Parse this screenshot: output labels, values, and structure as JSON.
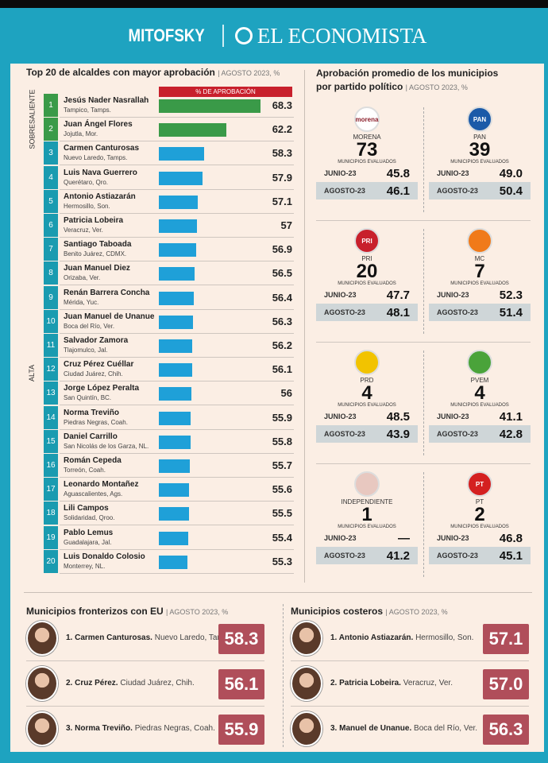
{
  "header": {
    "brand1": "MITOFSKY",
    "brand2": "EL ECONOMISTA"
  },
  "chart_data": {
    "type": "bar",
    "title": "Top 20 de alcaldes con mayor aprobación",
    "subtitle": "AGOSTO 2023, %",
    "legend": "% DE APROBACIÓN",
    "groups": [
      {
        "label": "SOBRESALIENTE",
        "ranks": [
          1,
          2
        ],
        "color": "#3a9a48"
      },
      {
        "label": "ALTA",
        "ranks": [
          3,
          20
        ],
        "color": "#1fa0d8"
      }
    ],
    "rows": [
      {
        "rank": "1",
        "name": "Jesús Nader Nasrallah",
        "place": "Tampico, Tamps.",
        "value": 68.3
      },
      {
        "rank": "2",
        "name": "Juan Ángel Flores",
        "place": "Jojutla, Mor.",
        "value": 62.2
      },
      {
        "rank": "3",
        "name": "Carmen Canturosas",
        "place": "Nuevo Laredo, Tamps.",
        "value": 58.3
      },
      {
        "rank": "4",
        "name": "Luis Nava Guerrero",
        "place": "Querétaro, Qro.",
        "value": 57.9
      },
      {
        "rank": "5",
        "name": "Antonio Astiazarán",
        "place": "Hermosillo, Son.",
        "value": 57.1
      },
      {
        "rank": "6",
        "name": "Patricia Lobeira",
        "place": "Veracruz, Ver.",
        "value": 57.0
      },
      {
        "rank": "7",
        "name": "Santiago Taboada",
        "place": "Benito Juárez, CDMX.",
        "value": 56.9
      },
      {
        "rank": "8",
        "name": "Juan Manuel Diez",
        "place": "Orizaba, Ver.",
        "value": 56.5
      },
      {
        "rank": "9",
        "name": "Renán Barrera Concha",
        "place": "Mérida, Yuc.",
        "value": 56.4
      },
      {
        "rank": "10",
        "name": "Juan Manuel de Unanue",
        "place": "Boca del Río, Ver.",
        "value": 56.3
      },
      {
        "rank": "11",
        "name": "Salvador Zamora",
        "place": "Tlajomulco, Jal.",
        "value": 56.2
      },
      {
        "rank": "12",
        "name": "Cruz Pérez Cuéllar",
        "place": "Ciudad Juárez, Chih.",
        "value": 56.1
      },
      {
        "rank": "13",
        "name": "Jorge López Peralta",
        "place": "San Quintín, BC.",
        "value": 56.0
      },
      {
        "rank": "14",
        "name": "Norma Treviño",
        "place": "Piedras Negras, Coah.",
        "value": 55.9
      },
      {
        "rank": "15",
        "name": "Daniel Carrillo",
        "place": "San Nicolás de los Garza, NL.",
        "value": 55.8
      },
      {
        "rank": "16",
        "name": "Román Cepeda",
        "place": "Torreón, Coah.",
        "value": 55.7
      },
      {
        "rank": "17",
        "name": "Leonardo Montañez",
        "place": "Aguascalientes, Ags.",
        "value": 55.6
      },
      {
        "rank": "18",
        "name": "Lili Campos",
        "place": "Solidaridad, Qroo.",
        "value": 55.5
      },
      {
        "rank": "19",
        "name": "Pablo Lemus",
        "place": "Guadalajara, Jal.",
        "value": 55.4
      },
      {
        "rank": "20",
        "name": "Luis Donaldo Colosio",
        "place": "Monterrey, NL.",
        "value": 55.3
      }
    ]
  },
  "parties": {
    "title1": "Aprobación promedio de los municipios",
    "title2": "por partido político",
    "subtitle": "AGOSTO 2023, %",
    "evaluated_label": "MUNICIPIOS EVALUADOS",
    "june_label": "JUNIO-23",
    "aug_label": "AGOSTO-23",
    "items": [
      {
        "name": "MORENA",
        "logo": "morena",
        "count": "73",
        "june": "45.8",
        "aug": "46.1",
        "color": "#8b1e2a"
      },
      {
        "name": "PAN",
        "logo": "PAN",
        "count": "39",
        "june": "49.0",
        "aug": "50.4",
        "color": "#1b5aa8"
      },
      {
        "name": "PRI",
        "logo": "PRI",
        "count": "20",
        "june": "47.7",
        "aug": "48.1",
        "color": "#c8202c"
      },
      {
        "name": "MC",
        "logo": "",
        "count": "7",
        "june": "52.3",
        "aug": "51.4",
        "color": "#f07a1a"
      },
      {
        "name": "PRD",
        "logo": "",
        "count": "4",
        "june": "48.5",
        "aug": "43.9",
        "color": "#f2c300"
      },
      {
        "name": "PVEM",
        "logo": "",
        "count": "4",
        "june": "41.1",
        "aug": "42.8",
        "color": "#4aa33a"
      },
      {
        "name": "INDEPENDIENTE",
        "logo": "",
        "count": "1",
        "june": "—",
        "aug": "41.2",
        "color": "#e8c8c0"
      },
      {
        "name": "PT",
        "logo": "PT",
        "count": "2",
        "june": "46.8",
        "aug": "45.1",
        "color": "#d42020"
      }
    ]
  },
  "border": {
    "title": "Municipios fronterizos con EU",
    "subtitle": "AGOSTO 2023, %",
    "items": [
      {
        "name": "1. Carmen Canturosas.",
        "place": "Nuevo Laredo, Tamps.",
        "value": "58.3"
      },
      {
        "name": "2. Cruz Pérez.",
        "place": "Ciudad Juárez, Chih.",
        "value": "56.1"
      },
      {
        "name": "3. Norma Treviño.",
        "place": "Piedras Negras, Coah.",
        "value": "55.9"
      }
    ]
  },
  "coastal": {
    "title": "Municipios costeros",
    "subtitle": "AGOSTO 2023, %",
    "items": [
      {
        "name": "1. Antonio Astiazarán.",
        "place": "Hermosillo, Son.",
        "value": "57.1"
      },
      {
        "name": "2. Patricia Lobeira.",
        "place": "Veracruz, Ver.",
        "value": "57.0"
      },
      {
        "name": "3. Manuel de Unanue.",
        "place": "Boca del Río, Ver.",
        "value": "56.3"
      }
    ]
  }
}
